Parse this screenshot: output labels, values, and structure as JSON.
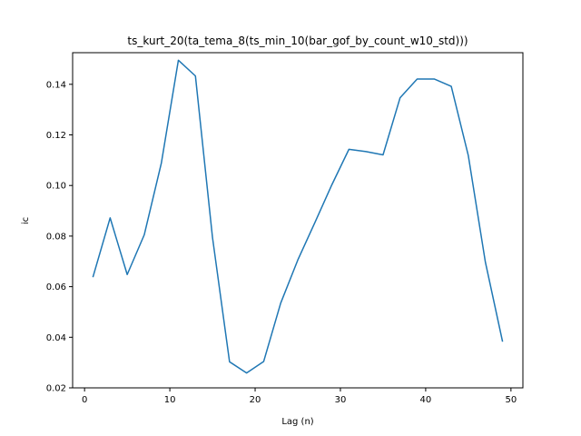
{
  "chart_data": {
    "type": "line",
    "title": "ts_kurt_20(ta_tema_8(ts_min_10(bar_gof_by_count_w10_std)))",
    "xlabel": "Lag (n)",
    "ylabel": "ic",
    "xlim": [
      -1.4,
      51.4
    ],
    "ylim": [
      0.02,
      0.1525
    ],
    "xticks": [
      0,
      10,
      20,
      30,
      40,
      50
    ],
    "yticks": [
      0.02,
      0.04,
      0.06,
      0.08,
      0.1,
      0.12,
      0.14
    ],
    "ytick_labels": [
      "0.02",
      "0.04",
      "0.06",
      "0.08",
      "0.10",
      "0.12",
      "0.14"
    ],
    "grid": false,
    "series": [
      {
        "color": "#1f77b4",
        "x": [
          1,
          3,
          5,
          7,
          9,
          11,
          13,
          15,
          17,
          19,
          21,
          23,
          25,
          27,
          29,
          31,
          33,
          35,
          37,
          39,
          41,
          43,
          45,
          47,
          49
        ],
        "y": [
          0.064,
          0.0872,
          0.0648,
          0.0805,
          0.1088,
          0.1495,
          0.1433,
          0.0795,
          0.0303,
          0.0259,
          0.0304,
          0.0535,
          0.0705,
          0.0853,
          0.1003,
          0.1143,
          0.1134,
          0.1121,
          0.1347,
          0.1421,
          0.1421,
          0.1392,
          0.1118,
          0.0697,
          0.0385
        ]
      }
    ]
  }
}
